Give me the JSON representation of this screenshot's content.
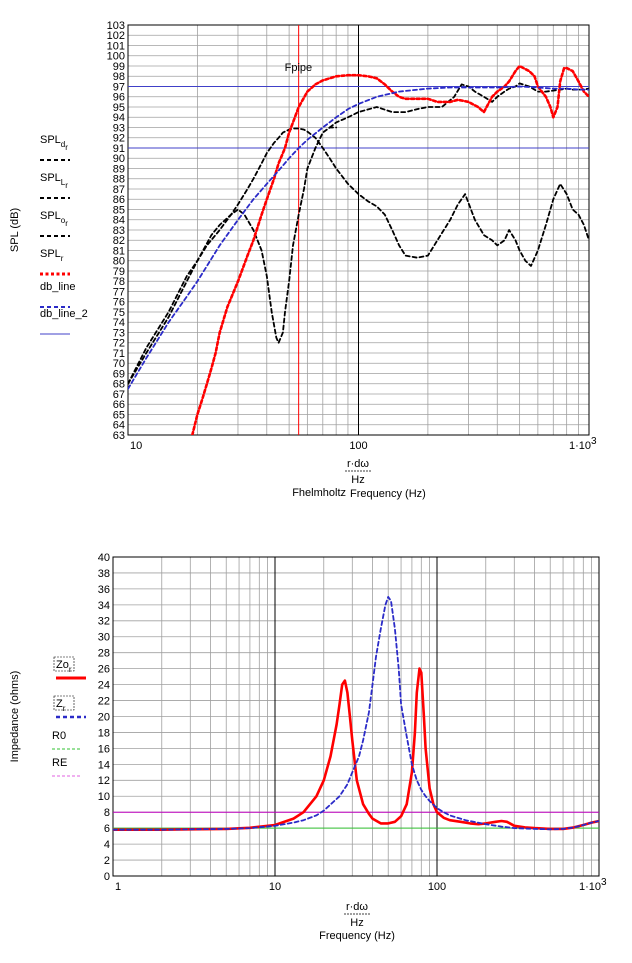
{
  "chart_data": [
    {
      "type": "line",
      "xscale": "log",
      "xlim": [
        10,
        1000
      ],
      "ylim": [
        63,
        103
      ],
      "x_tick_labels": [
        "10",
        "100",
        "1·10",
        "3"
      ],
      "ylabel": "SPL (dB)",
      "xlabel_num": "r·dω",
      "xlabel_den": "Hz",
      "xlabel_left": "Fhelmholtz",
      "xlabel_right": "Frequency (Hz)",
      "annotation": "Fpipe",
      "legend": [
        {
          "main": "SPL",
          "sub": "d",
          "sub2": "r"
        },
        {
          "main": "SPL",
          "sub": "L",
          "sub2": "r"
        },
        {
          "main": "SPL",
          "sub": "o",
          "sub2": "r"
        },
        {
          "main": "SPL",
          "sub": "r",
          "sub2": ""
        },
        {
          "main": "db_line",
          "sub": "",
          "sub2": ""
        },
        {
          "main": "db_line_2",
          "sub": "",
          "sub2": ""
        }
      ],
      "vline_x": 55,
      "hlines": [
        97,
        91
      ],
      "series": [
        {
          "key": "SPLd",
          "color": "#000000",
          "dash": "dash",
          "x": [
            10,
            12,
            15,
            18,
            20,
            22,
            25,
            28,
            30,
            33,
            35,
            38,
            40,
            43,
            45,
            47,
            50,
            52,
            55,
            58,
            60,
            65,
            70,
            75,
            80,
            90,
            100,
            110,
            120,
            130,
            140,
            150,
            160,
            180,
            200,
            220,
            250,
            270,
            290,
            320,
            350,
            380,
            400,
            430,
            450,
            480,
            500,
            530,
            560,
            600,
            650,
            700,
            750,
            800,
            850,
            900,
            950,
            1000
          ],
          "y": [
            68,
            71.5,
            75,
            78.5,
            80,
            81.5,
            83,
            84.5,
            85.5,
            87,
            88,
            89.5,
            90.5,
            91.5,
            92,
            92.5,
            92.8,
            92.9,
            92.9,
            92.8,
            92.6,
            92,
            91,
            90,
            89,
            87.5,
            86.5,
            85.8,
            85.3,
            84.5,
            83,
            81.5,
            80.5,
            80.3,
            80.5,
            82,
            84,
            85.5,
            86.5,
            84,
            82.5,
            82,
            81.5,
            82,
            83,
            82,
            81,
            80,
            79.5,
            81,
            83.5,
            86,
            87.5,
            86.5,
            85,
            84.5,
            83.5,
            82
          ]
        },
        {
          "key": "SPLL",
          "color": "#000000",
          "dash": "dash",
          "x": [
            10,
            12,
            15,
            18,
            20,
            23,
            25,
            28,
            30,
            32,
            35,
            38,
            40,
            42,
            44,
            45,
            47,
            48,
            50,
            52,
            55,
            58,
            60,
            65,
            70,
            75,
            80
          ],
          "y": [
            68,
            71,
            74.5,
            78,
            80,
            82.5,
            83.5,
            84.5,
            85,
            84.5,
            83,
            81,
            78.5,
            75,
            72.5,
            72,
            73,
            75,
            78,
            81.5,
            84.5,
            87,
            89,
            91,
            92.5,
            93,
            93
          ]
        },
        {
          "key": "SPLo",
          "color": "#000000",
          "dash": "dash",
          "x": [
            75,
            80,
            90,
            100,
            120,
            140,
            160,
            180,
            200,
            230,
            260,
            280,
            300,
            320,
            350,
            380,
            400,
            430,
            450,
            480,
            500,
            550,
            600,
            650,
            700,
            750,
            800,
            850,
            900,
            950,
            1000
          ],
          "y": [
            93,
            93.5,
            94,
            94.5,
            95,
            94.5,
            94.5,
            94.8,
            95,
            95,
            96,
            97.2,
            97,
            96.5,
            96,
            95.5,
            96,
            96.5,
            96.8,
            97,
            97.3,
            97,
            96.5,
            96.5,
            96.6,
            96.7,
            96.8,
            96.7,
            96.7,
            96.7,
            96.8
          ]
        },
        {
          "key": "SPLr",
          "color": "#ff0000",
          "dash": "dot",
          "x": [
            19,
            20,
            21,
            22,
            23,
            24,
            25,
            27,
            30,
            33,
            35,
            38,
            40,
            43,
            45,
            48,
            50,
            52,
            55,
            60,
            65,
            70,
            80,
            90,
            100,
            110,
            120,
            130,
            140,
            150,
            160,
            180,
            200,
            220,
            250,
            270,
            300,
            330,
            350,
            380,
            400,
            430,
            450,
            480,
            500,
            520,
            550,
            580,
            600,
            650,
            680,
            700,
            730,
            750,
            780,
            800,
            850,
            900,
            950,
            1000
          ],
          "y": [
            63,
            65,
            66.5,
            68,
            69.5,
            71,
            73,
            75.5,
            78,
            80.5,
            82,
            84.5,
            86,
            88,
            89.5,
            91,
            92.5,
            93.5,
            95,
            96.5,
            97.2,
            97.6,
            98,
            98.1,
            98.1,
            98,
            97.8,
            97.2,
            96.5,
            96,
            95.8,
            95.8,
            95.8,
            95.5,
            95.5,
            95.7,
            95.5,
            95,
            94.5,
            96,
            96.5,
            97,
            97.5,
            98.5,
            99,
            98.8,
            98.5,
            98,
            97,
            96,
            95,
            94,
            95,
            97.5,
            98.8,
            98.8,
            98.5,
            97.5,
            96.5,
            96
          ]
        },
        {
          "key": "SPLfull",
          "color": "#2b2bc8",
          "dash": "dash",
          "x": [
            10,
            12,
            15,
            18,
            20,
            25,
            30,
            35,
            40,
            45,
            50,
            55,
            60,
            70,
            80,
            90,
            100,
            120,
            150,
            200,
            250,
            300,
            350,
            400,
            500,
            600,
            700,
            800,
            900,
            1000
          ],
          "y": [
            67.5,
            70.5,
            74,
            76.5,
            78,
            81.5,
            84,
            86,
            87.5,
            88.8,
            90,
            91,
            91.8,
            93,
            94,
            94.8,
            95.3,
            96,
            96.5,
            96.8,
            96.9,
            96.9,
            96.9,
            96.9,
            97,
            96.9,
            96.8,
            96.8,
            96.7,
            96.7
          ]
        }
      ]
    },
    {
      "type": "line",
      "xscale": "log",
      "xlim": [
        1,
        1000
      ],
      "ylim": [
        0,
        40
      ],
      "x_tick_labels": [
        "1",
        "10",
        "100",
        "1·10",
        "3"
      ],
      "ylabel": "Impedance (ohms)",
      "xlabel_num": "r·dω",
      "xlabel_den": "Hz",
      "xlabel": "Frequency (Hz)",
      "legend": [
        {
          "main": "Zo",
          "sub": "r",
          "sub2": ""
        },
        {
          "main": "Z",
          "sub": "r",
          "sub2": ""
        },
        {
          "main": "R0",
          "sub": "",
          "sub2": ""
        },
        {
          "main": "RE",
          "sub": "",
          "sub2": ""
        }
      ],
      "hlines": [
        8,
        6
      ],
      "series": [
        {
          "key": "Zo",
          "color": "#ff0000",
          "dash": "solid",
          "x": [
            1,
            2,
            3,
            5,
            7,
            10,
            13,
            15,
            18,
            20,
            22,
            24,
            25,
            26,
            27,
            28,
            29,
            30,
            32,
            35,
            38,
            40,
            45,
            50,
            55,
            60,
            65,
            70,
            73,
            75,
            78,
            80,
            83,
            85,
            90,
            95,
            100,
            110,
            120,
            140,
            160,
            180,
            200,
            230,
            250,
            270,
            300,
            350,
            400,
            500,
            600,
            700,
            800,
            900,
            1000
          ],
          "y": [
            5.8,
            5.8,
            5.85,
            5.9,
            6.05,
            6.4,
            7.2,
            8,
            10,
            12,
            15,
            19,
            21.5,
            24,
            24.5,
            23,
            20,
            17,
            12,
            9,
            7.8,
            7.2,
            6.6,
            6.6,
            6.8,
            7.5,
            9,
            13,
            18,
            23,
            26,
            25.5,
            20,
            16,
            11,
            9,
            8,
            7.3,
            7,
            6.8,
            6.6,
            6.5,
            6.6,
            6.8,
            6.9,
            6.8,
            6.3,
            6.1,
            6,
            5.9,
            5.9,
            6.1,
            6.4,
            6.7,
            6.9
          ]
        },
        {
          "key": "Z",
          "color": "#2b2bc8",
          "dash": "dash",
          "x": [
            1,
            2,
            3,
            5,
            7,
            10,
            13,
            15,
            18,
            20,
            25,
            28,
            30,
            33,
            35,
            38,
            40,
            42,
            45,
            48,
            50,
            52,
            55,
            58,
            60,
            65,
            70,
            75,
            80,
            85,
            90,
            100,
            110,
            120,
            150,
            200,
            250,
            300,
            400,
            500,
            600,
            700,
            800,
            900,
            1000
          ],
          "y": [
            5.8,
            5.8,
            5.85,
            5.9,
            6,
            6.3,
            6.7,
            7,
            7.6,
            8.2,
            10,
            11.5,
            13,
            15,
            17,
            20.5,
            24,
            27.5,
            31,
            34,
            35,
            34.5,
            31,
            26,
            21.5,
            17.5,
            14,
            12,
            10.8,
            10,
            9.4,
            8.5,
            8,
            7.6,
            7,
            6.5,
            6.2,
            6,
            5.9,
            5.85,
            5.9,
            6.1,
            6.4,
            6.7,
            6.9
          ]
        }
      ]
    }
  ]
}
